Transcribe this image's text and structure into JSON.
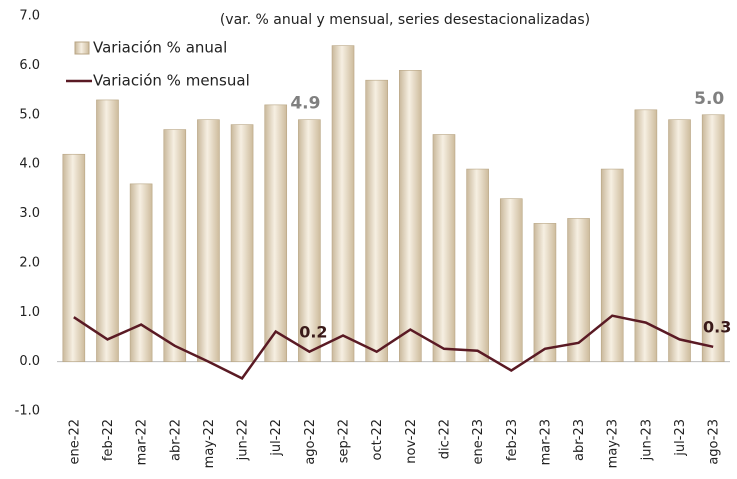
{
  "chart_data": {
    "type": "bar",
    "subtitle": "(var. % anual y mensual, series desestacionalizadas)",
    "categories": [
      "ene-22",
      "feb-22",
      "mar-22",
      "abr-22",
      "may-22",
      "jun-22",
      "jul-22",
      "ago-22",
      "sep-22",
      "oct-22",
      "nov-22",
      "dic-22",
      "ene-23",
      "feb-23",
      "mar-23",
      "abr-23",
      "may-23",
      "jun-23",
      "jul-23",
      "ago-23"
    ],
    "series": [
      {
        "name": "Variación % anual",
        "type": "bar",
        "color": "#e6d9c3",
        "values": [
          4.2,
          5.3,
          3.6,
          4.7,
          4.9,
          4.8,
          5.2,
          4.9,
          6.4,
          5.7,
          5.9,
          4.6,
          3.9,
          3.3,
          2.8,
          2.9,
          3.9,
          5.1,
          4.9,
          5.0
        ],
        "value_labels": [
          null,
          null,
          null,
          null,
          null,
          null,
          null,
          "4.9",
          null,
          null,
          null,
          null,
          null,
          null,
          null,
          null,
          null,
          null,
          null,
          "5.0"
        ]
      },
      {
        "name": "Variación % mensual",
        "type": "line",
        "color": "#5a1a24",
        "values": [
          0.9,
          0.45,
          0.75,
          0.32,
          0.0,
          -0.34,
          0.61,
          0.2,
          0.53,
          0.2,
          0.65,
          0.26,
          0.22,
          -0.18,
          0.26,
          0.38,
          0.93,
          0.79,
          0.45,
          0.3
        ],
        "value_labels": [
          null,
          null,
          null,
          null,
          null,
          null,
          null,
          "0.2",
          null,
          null,
          null,
          null,
          null,
          null,
          null,
          null,
          null,
          null,
          null,
          "0.3"
        ]
      }
    ],
    "ylim": [
      -1,
      7
    ],
    "yticks": [
      {
        "value": -1,
        "label": "-1.0"
      },
      {
        "value": 0,
        "label": "0.0"
      },
      {
        "value": 1,
        "label": "1.0"
      },
      {
        "value": 2,
        "label": "2.0"
      },
      {
        "value": 3,
        "label": "3.0"
      },
      {
        "value": 4,
        "label": "4.0"
      },
      {
        "value": 5,
        "label": "5.0"
      },
      {
        "value": 6,
        "label": "6.0"
      },
      {
        "value": 7,
        "label": "7.0"
      }
    ],
    "grid": false,
    "legend": "top-left"
  }
}
